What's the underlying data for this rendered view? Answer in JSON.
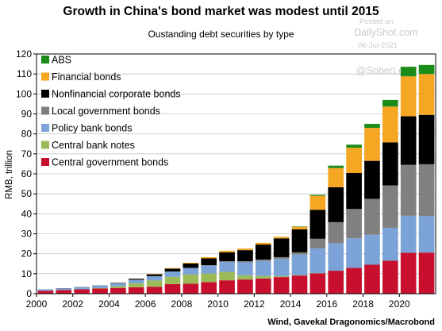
{
  "title": "Growth in China's bond market was modest until 2015",
  "subtitle": "Oustanding debt securities by type",
  "source": "Wind, Gavekal Dragonomics/Macrobond",
  "watermark": {
    "posted_on": "Posted on",
    "site": "DailyShot.com",
    "date": "06-Jul-2021",
    "handle": "@SoberLook"
  },
  "chart_data": {
    "type": "bar",
    "stacked": true,
    "ylabel": "RMB, trillion",
    "ylim": [
      0,
      120
    ],
    "yticks": [
      0,
      10,
      20,
      30,
      40,
      50,
      60,
      70,
      80,
      90,
      100,
      110,
      120
    ],
    "xtick_labels": [
      "2000",
      "2002",
      "2004",
      "2006",
      "2008",
      "2010",
      "2012",
      "2014",
      "2016",
      "2018",
      "2020"
    ],
    "grid": true,
    "legend_position": "top-left",
    "categories": [
      "2000",
      "2001",
      "2002",
      "2003",
      "2004",
      "2005",
      "2006",
      "2007",
      "2008",
      "2009",
      "2010",
      "2011",
      "2012",
      "2013",
      "2014",
      "2015",
      "2016",
      "2017",
      "2018",
      "2019",
      "2020",
      "2021"
    ],
    "series": [
      {
        "name": "Central government bonds",
        "color": "#c8102e",
        "values": [
          1.5,
          1.8,
          2.2,
          2.6,
          2.9,
          3.2,
          3.5,
          4.8,
          5.0,
          5.8,
          6.7,
          7.1,
          7.6,
          8.3,
          9.1,
          10.2,
          11.5,
          12.9,
          14.5,
          16.5,
          20.5,
          20.6
        ]
      },
      {
        "name": "Central bank notes",
        "color": "#9bbb59",
        "values": [
          0.0,
          0.0,
          0.0,
          0.2,
          0.9,
          2.0,
          3.1,
          3.6,
          4.6,
          4.3,
          4.2,
          2.1,
          1.3,
          0.5,
          0.2,
          0.1,
          0.0,
          0.0,
          0.0,
          0.0,
          0.0,
          0.0
        ]
      },
      {
        "name": "Policy bank bonds",
        "color": "#7ba3d8",
        "values": [
          0.7,
          0.8,
          1.0,
          1.2,
          1.5,
          1.8,
          2.2,
          2.7,
          3.3,
          4.0,
          5.0,
          6.5,
          7.5,
          8.6,
          10.3,
          12.4,
          13.8,
          14.8,
          15.0,
          16.5,
          18.5,
          18.3
        ]
      },
      {
        "name": "Local government bonds",
        "color": "#808080",
        "values": [
          0.0,
          0.0,
          0.0,
          0.0,
          0.0,
          0.0,
          0.0,
          0.0,
          0.0,
          0.2,
          0.4,
          0.6,
          0.7,
          0.9,
          1.1,
          4.8,
          10.5,
          14.7,
          18.0,
          21.2,
          25.5,
          25.9
        ]
      },
      {
        "name": "Nonfinancial corporate bonds",
        "color": "#000000",
        "values": [
          0.0,
          0.1,
          0.1,
          0.1,
          0.2,
          0.5,
          0.9,
          1.4,
          2.2,
          3.4,
          4.4,
          5.5,
          7.5,
          9.4,
          11.5,
          14.5,
          17.5,
          18.0,
          19.0,
          21.5,
          24.3,
          24.7
        ]
      },
      {
        "name": "Financial bonds",
        "color": "#f5a623",
        "values": [
          0.0,
          0.0,
          0.0,
          0.0,
          0.1,
          0.1,
          0.2,
          0.3,
          0.4,
          0.6,
          0.8,
          0.8,
          0.9,
          0.8,
          1.3,
          7.0,
          9.6,
          12.7,
          16.5,
          18.0,
          20.0,
          20.5
        ]
      },
      {
        "name": "ABS",
        "color": "#1a8c1a",
        "values": [
          0.0,
          0.0,
          0.0,
          0.0,
          0.0,
          0.0,
          0.0,
          0.0,
          0.0,
          0.0,
          0.0,
          0.0,
          0.0,
          0.0,
          0.2,
          0.5,
          1.2,
          1.5,
          2.0,
          3.3,
          4.8,
          4.5
        ]
      }
    ]
  }
}
